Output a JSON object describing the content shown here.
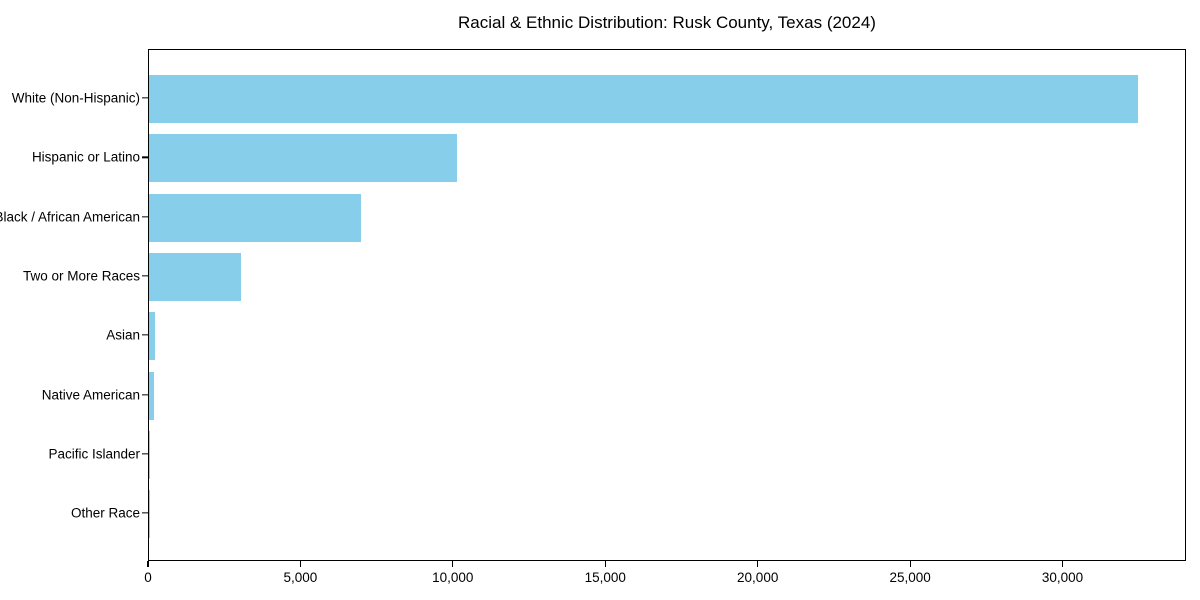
{
  "title": "Racial & Ethnic Distribution: Rusk County, Texas (2024)",
  "colors": {
    "bar": "#87CEEB",
    "spine": "#000000",
    "text": "#000000",
    "background": "#ffffff"
  },
  "chart_data": {
    "type": "bar",
    "orientation": "horizontal",
    "title": "Racial & Ethnic Distribution: Rusk County, Texas (2024)",
    "xlabel": "",
    "ylabel": "",
    "grid": false,
    "legend": false,
    "categories": [
      "White (Non-Hispanic)",
      "Hispanic or Latino",
      "Black / African American",
      "Two or More Races",
      "Asian",
      "Native American",
      "Pacific Islander",
      "Other Race"
    ],
    "values": [
      32450,
      10100,
      6950,
      3020,
      210,
      150,
      30,
      10
    ],
    "bar_color": "#87CEEB",
    "xlim": [
      0,
      34050
    ],
    "x_ticks": [
      {
        "value": 0,
        "label": "0"
      },
      {
        "value": 5000,
        "label": "5,000"
      },
      {
        "value": 10000,
        "label": "10,000"
      },
      {
        "value": 15000,
        "label": "15,000"
      },
      {
        "value": 20000,
        "label": "20,000"
      },
      {
        "value": 25000,
        "label": "25,000"
      },
      {
        "value": 30000,
        "label": "30,000"
      }
    ]
  }
}
